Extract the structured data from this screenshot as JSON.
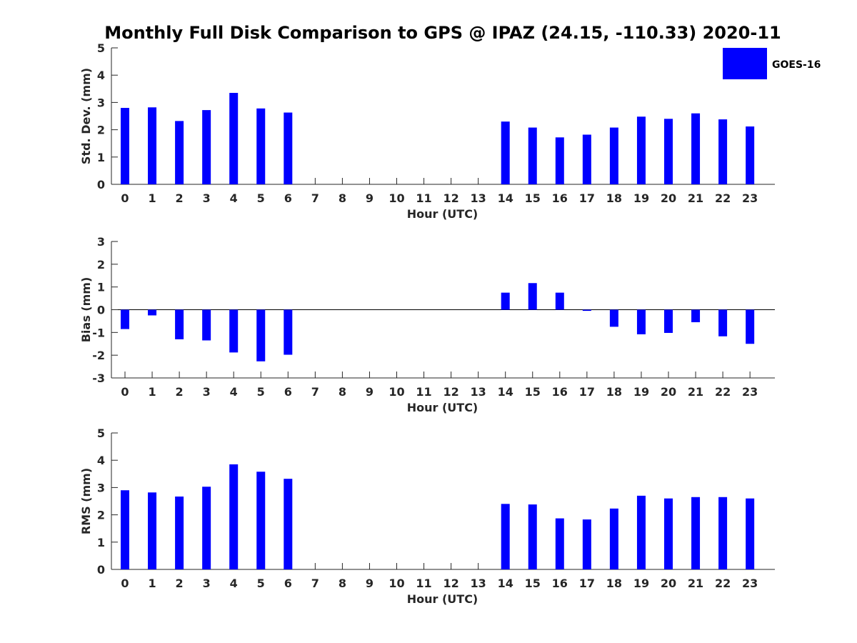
{
  "colors": {
    "bar": "#0000ff",
    "axis": "#262626",
    "background": "#ffffff"
  },
  "chart_data": {
    "title": "Monthly Full Disk Comparison to GPS @ IPAZ (24.15, -110.33) 2020-11",
    "legend": {
      "label": "GOES-16",
      "position": "top-right"
    },
    "categories": [
      "0",
      "1",
      "2",
      "3",
      "4",
      "5",
      "6",
      "7",
      "8",
      "9",
      "10",
      "11",
      "12",
      "13",
      "14",
      "15",
      "16",
      "17",
      "18",
      "19",
      "20",
      "21",
      "22",
      "23"
    ],
    "panels": [
      {
        "id": "std",
        "type": "bar",
        "ylabel": "Std. Dev. (mm)",
        "xlabel": "Hour (UTC)",
        "ylim": [
          0,
          5
        ],
        "yticks": [
          0,
          1,
          2,
          3,
          4,
          5
        ],
        "zero_line": false,
        "values": [
          2.8,
          2.82,
          2.32,
          2.72,
          3.35,
          2.78,
          2.63,
          null,
          null,
          null,
          null,
          null,
          null,
          null,
          2.3,
          2.08,
          1.72,
          1.82,
          2.08,
          2.48,
          2.4,
          2.6,
          2.38,
          2.12
        ]
      },
      {
        "id": "bias",
        "type": "bar",
        "ylabel": "Bias (mm)",
        "xlabel": "Hour (UTC)",
        "ylim": [
          -3,
          3
        ],
        "yticks": [
          -3,
          -2,
          -1,
          0,
          1,
          2,
          3
        ],
        "zero_line": true,
        "values": [
          -0.85,
          -0.25,
          -1.3,
          -1.35,
          -1.88,
          -2.27,
          -1.98,
          null,
          null,
          null,
          null,
          null,
          null,
          null,
          0.75,
          1.17,
          0.75,
          -0.05,
          -0.75,
          -1.08,
          -1.02,
          -0.55,
          -1.17,
          -1.5
        ]
      },
      {
        "id": "rms",
        "type": "bar",
        "ylabel": "RMS (mm)",
        "xlabel": "Hour (UTC)",
        "ylim": [
          0,
          5
        ],
        "yticks": [
          0,
          1,
          2,
          3,
          4,
          5
        ],
        "zero_line": false,
        "values": [
          2.9,
          2.82,
          2.67,
          3.03,
          3.85,
          3.58,
          3.32,
          null,
          null,
          null,
          null,
          null,
          null,
          null,
          2.4,
          2.38,
          1.87,
          1.83,
          2.23,
          2.7,
          2.6,
          2.65,
          2.65,
          2.6
        ]
      }
    ]
  }
}
